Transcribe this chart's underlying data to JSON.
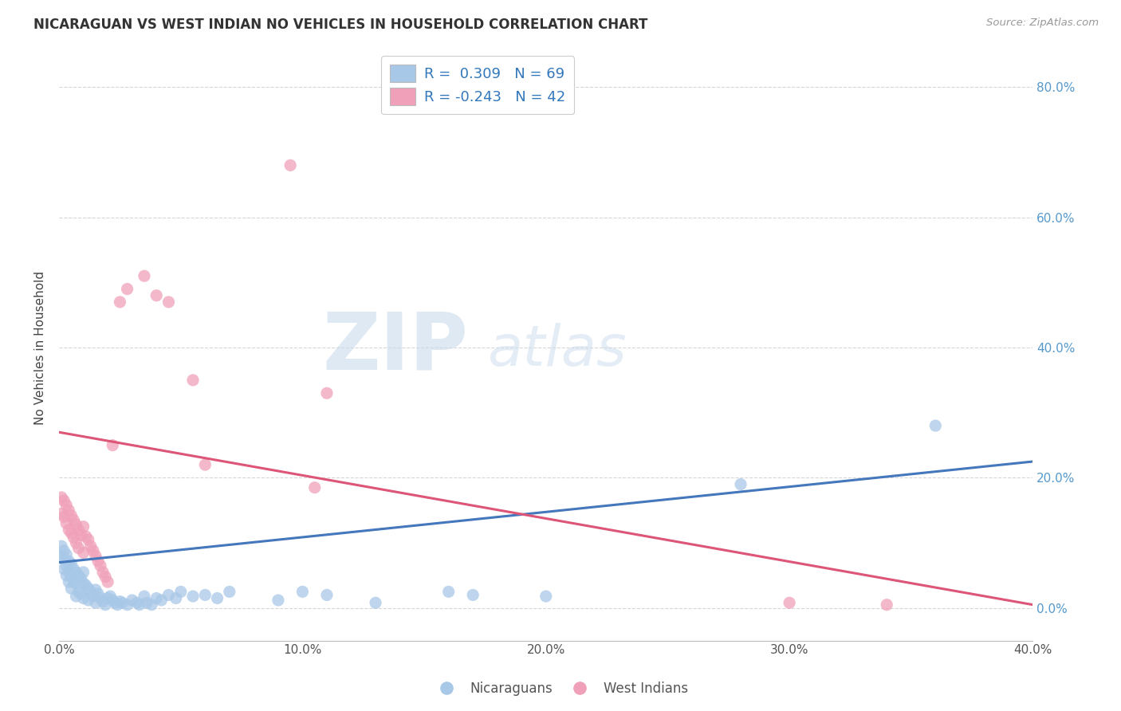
{
  "title": "NICARAGUAN VS WEST INDIAN NO VEHICLES IN HOUSEHOLD CORRELATION CHART",
  "source": "Source: ZipAtlas.com",
  "ylabel": "No Vehicles in Household",
  "legend_blue_label": "R =  0.309   N = 69",
  "legend_pink_label": "R = -0.243   N = 42",
  "legend_bottom_blue": "Nicaraguans",
  "legend_bottom_pink": "West Indians",
  "blue_color": "#A8C8E8",
  "pink_color": "#F0A0B8",
  "blue_line_color": "#4477BB",
  "pink_line_color": "#DD5577",
  "watermark_zip": "ZIP",
  "watermark_atlas": "atlas",
  "blue_line_x": [
    0.0,
    0.4
  ],
  "blue_line_y": [
    0.07,
    0.225
  ],
  "pink_line_x": [
    0.0,
    0.4
  ],
  "pink_line_y": [
    0.27,
    0.005
  ],
  "xlim": [
    0.0,
    0.4
  ],
  "ylim": [
    -0.05,
    0.85
  ],
  "yticks": [
    0.0,
    0.2,
    0.4,
    0.6,
    0.8
  ],
  "xticks": [
    0.0,
    0.1,
    0.2,
    0.3,
    0.4
  ],
  "blue_scatter_x": [
    0.001,
    0.001,
    0.002,
    0.002,
    0.002,
    0.003,
    0.003,
    0.003,
    0.004,
    0.004,
    0.004,
    0.005,
    0.005,
    0.005,
    0.006,
    0.006,
    0.007,
    0.007,
    0.007,
    0.008,
    0.008,
    0.009,
    0.009,
    0.01,
    0.01,
    0.01,
    0.011,
    0.012,
    0.012,
    0.013,
    0.014,
    0.015,
    0.015,
    0.016,
    0.017,
    0.018,
    0.019,
    0.02,
    0.021,
    0.022,
    0.023,
    0.024,
    0.025,
    0.026,
    0.028,
    0.03,
    0.032,
    0.033,
    0.035,
    0.036,
    0.038,
    0.04,
    0.042,
    0.045,
    0.048,
    0.05,
    0.055,
    0.06,
    0.065,
    0.07,
    0.09,
    0.1,
    0.11,
    0.13,
    0.16,
    0.17,
    0.2,
    0.28,
    0.36
  ],
  "blue_scatter_y": [
    0.095,
    0.08,
    0.088,
    0.075,
    0.06,
    0.082,
    0.065,
    0.05,
    0.072,
    0.055,
    0.04,
    0.068,
    0.048,
    0.03,
    0.06,
    0.04,
    0.055,
    0.038,
    0.018,
    0.05,
    0.025,
    0.045,
    0.022,
    0.055,
    0.038,
    0.015,
    0.035,
    0.03,
    0.012,
    0.025,
    0.018,
    0.028,
    0.008,
    0.022,
    0.015,
    0.01,
    0.005,
    0.015,
    0.018,
    0.012,
    0.008,
    0.005,
    0.01,
    0.008,
    0.005,
    0.012,
    0.008,
    0.005,
    0.018,
    0.008,
    0.005,
    0.015,
    0.012,
    0.02,
    0.015,
    0.025,
    0.018,
    0.02,
    0.015,
    0.025,
    0.012,
    0.025,
    0.02,
    0.008,
    0.025,
    0.02,
    0.018,
    0.19,
    0.28
  ],
  "pink_scatter_x": [
    0.001,
    0.001,
    0.002,
    0.002,
    0.003,
    0.003,
    0.004,
    0.004,
    0.005,
    0.005,
    0.006,
    0.006,
    0.007,
    0.007,
    0.008,
    0.008,
    0.009,
    0.01,
    0.01,
    0.011,
    0.012,
    0.013,
    0.014,
    0.015,
    0.016,
    0.017,
    0.018,
    0.019,
    0.02,
    0.022,
    0.025,
    0.028,
    0.035,
    0.04,
    0.045,
    0.055,
    0.06,
    0.095,
    0.105,
    0.11,
    0.3,
    0.34
  ],
  "pink_scatter_y": [
    0.17,
    0.145,
    0.165,
    0.14,
    0.158,
    0.13,
    0.15,
    0.12,
    0.142,
    0.115,
    0.135,
    0.108,
    0.128,
    0.1,
    0.12,
    0.092,
    0.112,
    0.125,
    0.085,
    0.11,
    0.105,
    0.095,
    0.088,
    0.08,
    0.072,
    0.065,
    0.055,
    0.048,
    0.04,
    0.25,
    0.47,
    0.49,
    0.51,
    0.48,
    0.47,
    0.35,
    0.22,
    0.68,
    0.185,
    0.33,
    0.008,
    0.005
  ]
}
